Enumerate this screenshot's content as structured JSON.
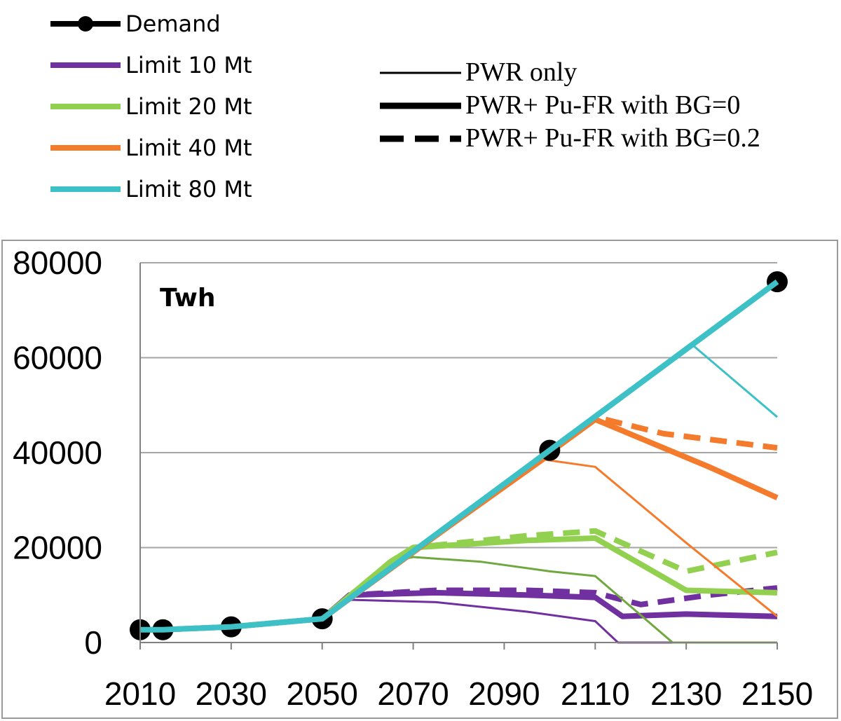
{
  "chart_data": {
    "type": "line",
    "ylabel": "Twh",
    "ylim": [
      0,
      80000
    ],
    "xlim": [
      2010,
      2150
    ],
    "x_ticks": [
      "2010",
      "2030",
      "2050",
      "2070",
      "2090",
      "2110",
      "2130",
      "2150"
    ],
    "y_ticks": [
      "0",
      "20000",
      "40000",
      "60000",
      "80000"
    ],
    "legend_series": [
      {
        "name": "Demand",
        "color": "#000000",
        "markers": true
      },
      {
        "name": "Limit 10 Mt",
        "color": "#7030A0"
      },
      {
        "name": "Limit 20 Mt",
        "color": "#92D050"
      },
      {
        "name": "Limit 40 Mt",
        "color": "#F47A2C"
      },
      {
        "name": "Limit 80 Mt",
        "color": "#3EC1C6"
      }
    ],
    "legend_styles": [
      {
        "name": "PWR only",
        "style": "thin"
      },
      {
        "name": "PWR+ Pu-FR with BG=0",
        "style": "thick"
      },
      {
        "name": "PWR+ Pu-FR with BG=0.2",
        "style": "dashed"
      }
    ],
    "series": [
      {
        "name": "Demand",
        "style": "markers",
        "color": "#000000",
        "points": [
          [
            2010,
            2700
          ],
          [
            2015,
            2700
          ],
          [
            2030,
            3300
          ],
          [
            2050,
            5000
          ],
          [
            2100,
            40500
          ],
          [
            2150,
            76000
          ]
        ]
      },
      {
        "name": "Limit 10 Mt",
        "style": "thin",
        "color": "#7030A0",
        "points": [
          [
            2050,
            5000
          ],
          [
            2056,
            9000
          ],
          [
            2075,
            8500
          ],
          [
            2095,
            6500
          ],
          [
            2110,
            4500
          ],
          [
            2115,
            0
          ],
          [
            2150,
            0
          ]
        ]
      },
      {
        "name": "Limit 10 Mt",
        "style": "thick",
        "color": "#7030A0",
        "points": [
          [
            2050,
            5000
          ],
          [
            2056,
            10000
          ],
          [
            2075,
            10500
          ],
          [
            2095,
            10000
          ],
          [
            2110,
            9500
          ],
          [
            2116,
            5500
          ],
          [
            2130,
            6000
          ],
          [
            2150,
            5500
          ]
        ]
      },
      {
        "name": "Limit 10 Mt",
        "style": "dashed",
        "color": "#7030A0",
        "points": [
          [
            2050,
            5000
          ],
          [
            2056,
            10000
          ],
          [
            2075,
            11000
          ],
          [
            2095,
            11000
          ],
          [
            2110,
            10500
          ],
          [
            2120,
            8000
          ],
          [
            2135,
            10000
          ],
          [
            2150,
            11500
          ]
        ]
      },
      {
        "name": "Limit 20 Mt",
        "style": "thin",
        "color": "#70A840",
        "points": [
          [
            2050,
            5000
          ],
          [
            2065,
            17000
          ],
          [
            2070,
            18000
          ],
          [
            2085,
            17000
          ],
          [
            2100,
            15000
          ],
          [
            2110,
            14000
          ],
          [
            2127,
            0
          ],
          [
            2150,
            0
          ]
        ]
      },
      {
        "name": "Limit 20 Mt",
        "style": "thick",
        "color": "#92D050",
        "points": [
          [
            2050,
            5000
          ],
          [
            2065,
            17000
          ],
          [
            2070,
            20000
          ],
          [
            2095,
            21500
          ],
          [
            2110,
            22000
          ],
          [
            2130,
            11000
          ],
          [
            2150,
            10500
          ]
        ]
      },
      {
        "name": "Limit 20 Mt",
        "style": "dashed",
        "color": "#92D050",
        "points": [
          [
            2050,
            5000
          ],
          [
            2065,
            17000
          ],
          [
            2070,
            20000
          ],
          [
            2095,
            22500
          ],
          [
            2110,
            23500
          ],
          [
            2130,
            15000
          ],
          [
            2150,
            19000
          ]
        ]
      },
      {
        "name": "Limit 40 Mt",
        "style": "thin",
        "color": "#F47A2C",
        "points": [
          [
            2050,
            5000
          ],
          [
            2099,
            38500
          ],
          [
            2110,
            37000
          ],
          [
            2130,
            21000
          ],
          [
            2150,
            5500
          ]
        ]
      },
      {
        "name": "Limit 40 Mt",
        "style": "thick",
        "color": "#F47A2C",
        "points": [
          [
            2050,
            5000
          ],
          [
            2110,
            47000
          ],
          [
            2135,
            37000
          ],
          [
            2150,
            30500
          ]
        ]
      },
      {
        "name": "Limit 40 Mt",
        "style": "dashed",
        "color": "#F47A2C",
        "points": [
          [
            2010,
            2700
          ],
          [
            2015,
            2700
          ],
          [
            2030,
            3300
          ],
          [
            2050,
            5000
          ],
          [
            2110,
            47500
          ],
          [
            2125,
            44000
          ],
          [
            2150,
            41000
          ]
        ]
      },
      {
        "name": "Limit 80 Mt",
        "style": "thin",
        "color": "#3EC1C6",
        "points": [
          [
            2050,
            5000
          ],
          [
            2131,
            63000
          ],
          [
            2150,
            47500
          ]
        ]
      },
      {
        "name": "Limit 80 Mt",
        "style": "thick",
        "color": "#3EC1C6",
        "points": [
          [
            2010,
            2700
          ],
          [
            2015,
            2700
          ],
          [
            2030,
            3300
          ],
          [
            2050,
            5000
          ],
          [
            2150,
            76000
          ]
        ]
      }
    ]
  }
}
